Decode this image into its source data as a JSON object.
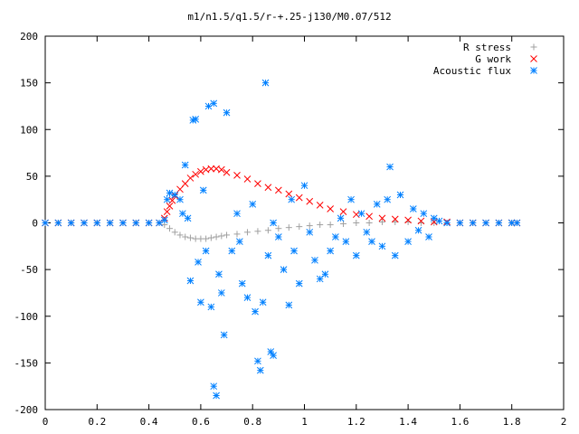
{
  "chart_data": {
    "type": "scatter",
    "title": "m1/n1.5/q1.5/r-+.25-j130/M0.07/512",
    "xlabel": "",
    "ylabel": "",
    "xlim": [
      0,
      2
    ],
    "ylim": [
      -200,
      200
    ],
    "x_ticks": [
      "0",
      "0.2",
      "0.4",
      "0.6",
      "0.8",
      "1",
      "1.2",
      "1.4",
      "1.6",
      "1.8",
      "2"
    ],
    "y_ticks": [
      "200",
      "150",
      "100",
      "50",
      "0",
      "-50",
      "-100",
      "-150",
      "-200"
    ],
    "grid": false,
    "legend_position": "top-right",
    "series": [
      {
        "name": "R stress",
        "marker": "plus",
        "color": "#a0a0a0",
        "points": [
          [
            0.0,
            0
          ],
          [
            0.05,
            0
          ],
          [
            0.1,
            0
          ],
          [
            0.15,
            0
          ],
          [
            0.2,
            0
          ],
          [
            0.25,
            0
          ],
          [
            0.3,
            0
          ],
          [
            0.35,
            0
          ],
          [
            0.4,
            0
          ],
          [
            0.44,
            0
          ],
          [
            0.46,
            -2
          ],
          [
            0.48,
            -6
          ],
          [
            0.5,
            -10
          ],
          [
            0.52,
            -13
          ],
          [
            0.54,
            -15
          ],
          [
            0.56,
            -16
          ],
          [
            0.58,
            -17
          ],
          [
            0.6,
            -17
          ],
          [
            0.62,
            -17
          ],
          [
            0.64,
            -16
          ],
          [
            0.66,
            -15
          ],
          [
            0.68,
            -14
          ],
          [
            0.7,
            -13
          ],
          [
            0.74,
            -12
          ],
          [
            0.78,
            -10
          ],
          [
            0.82,
            -9
          ],
          [
            0.86,
            -8
          ],
          [
            0.9,
            -6
          ],
          [
            0.94,
            -5
          ],
          [
            0.98,
            -4
          ],
          [
            1.02,
            -3
          ],
          [
            1.06,
            -2
          ],
          [
            1.1,
            -2
          ],
          [
            1.15,
            -1
          ],
          [
            1.2,
            0
          ],
          [
            1.25,
            0
          ],
          [
            1.3,
            1
          ],
          [
            1.35,
            1
          ],
          [
            1.4,
            1
          ],
          [
            1.45,
            0
          ],
          [
            1.5,
            0
          ],
          [
            1.55,
            0
          ],
          [
            1.6,
            0
          ],
          [
            1.65,
            0
          ],
          [
            1.7,
            0
          ],
          [
            1.75,
            0
          ],
          [
            1.8,
            0
          ],
          [
            1.82,
            0
          ]
        ]
      },
      {
        "name": "G work",
        "marker": "cross",
        "color": "#ff0000",
        "points": [
          [
            0.0,
            0
          ],
          [
            0.05,
            0
          ],
          [
            0.1,
            0
          ],
          [
            0.15,
            0
          ],
          [
            0.2,
            0
          ],
          [
            0.25,
            0
          ],
          [
            0.3,
            0
          ],
          [
            0.35,
            0
          ],
          [
            0.4,
            0
          ],
          [
            0.44,
            0
          ],
          [
            0.46,
            5
          ],
          [
            0.47,
            12
          ],
          [
            0.48,
            18
          ],
          [
            0.49,
            24
          ],
          [
            0.5,
            29
          ],
          [
            0.52,
            36
          ],
          [
            0.54,
            42
          ],
          [
            0.56,
            48
          ],
          [
            0.58,
            52
          ],
          [
            0.6,
            55
          ],
          [
            0.62,
            57
          ],
          [
            0.64,
            58
          ],
          [
            0.66,
            58
          ],
          [
            0.68,
            57
          ],
          [
            0.7,
            54
          ],
          [
            0.74,
            51
          ],
          [
            0.78,
            47
          ],
          [
            0.82,
            42
          ],
          [
            0.86,
            38
          ],
          [
            0.9,
            35
          ],
          [
            0.94,
            31
          ],
          [
            0.98,
            27
          ],
          [
            1.02,
            23
          ],
          [
            1.06,
            19
          ],
          [
            1.1,
            15
          ],
          [
            1.15,
            12
          ],
          [
            1.2,
            9
          ],
          [
            1.25,
            7
          ],
          [
            1.3,
            5
          ],
          [
            1.35,
            4
          ],
          [
            1.4,
            3
          ],
          [
            1.45,
            2
          ],
          [
            1.5,
            1
          ],
          [
            1.55,
            1
          ],
          [
            1.6,
            0
          ],
          [
            1.65,
            0
          ],
          [
            1.7,
            0
          ],
          [
            1.75,
            0
          ],
          [
            1.8,
            0
          ],
          [
            1.82,
            0
          ]
        ]
      },
      {
        "name": "Acoustic flux",
        "marker": "star",
        "color": "#0080ff",
        "points": [
          [
            0.0,
            0
          ],
          [
            0.05,
            0
          ],
          [
            0.1,
            0
          ],
          [
            0.15,
            0
          ],
          [
            0.2,
            0
          ],
          [
            0.25,
            0
          ],
          [
            0.3,
            0
          ],
          [
            0.35,
            0
          ],
          [
            0.4,
            0
          ],
          [
            0.44,
            0
          ],
          [
            0.46,
            3
          ],
          [
            0.47,
            25
          ],
          [
            0.48,
            32
          ],
          [
            0.5,
            30
          ],
          [
            0.52,
            25
          ],
          [
            0.53,
            10
          ],
          [
            0.54,
            62
          ],
          [
            0.55,
            5
          ],
          [
            0.56,
            -62
          ],
          [
            0.57,
            110
          ],
          [
            0.58,
            111
          ],
          [
            0.59,
            -42
          ],
          [
            0.6,
            -85
          ],
          [
            0.61,
            35
          ],
          [
            0.62,
            -30
          ],
          [
            0.63,
            125
          ],
          [
            0.64,
            -90
          ],
          [
            0.65,
            128
          ],
          [
            0.65,
            -175
          ],
          [
            0.66,
            -185
          ],
          [
            0.67,
            -55
          ],
          [
            0.68,
            -75
          ],
          [
            0.69,
            -120
          ],
          [
            0.7,
            118
          ],
          [
            0.72,
            -30
          ],
          [
            0.74,
            10
          ],
          [
            0.75,
            -20
          ],
          [
            0.76,
            -65
          ],
          [
            0.78,
            -80
          ],
          [
            0.8,
            20
          ],
          [
            0.81,
            -95
          ],
          [
            0.82,
            -148
          ],
          [
            0.83,
            -158
          ],
          [
            0.84,
            -85
          ],
          [
            0.85,
            150
          ],
          [
            0.86,
            -35
          ],
          [
            0.87,
            -138
          ],
          [
            0.88,
            -142
          ],
          [
            0.88,
            0
          ],
          [
            0.9,
            -15
          ],
          [
            0.92,
            -50
          ],
          [
            0.94,
            -88
          ],
          [
            0.95,
            25
          ],
          [
            0.96,
            -30
          ],
          [
            0.98,
            -65
          ],
          [
            1.0,
            40
          ],
          [
            1.02,
            -10
          ],
          [
            1.04,
            -40
          ],
          [
            1.06,
            -60
          ],
          [
            1.08,
            -55
          ],
          [
            1.1,
            -30
          ],
          [
            1.12,
            -15
          ],
          [
            1.14,
            5
          ],
          [
            1.16,
            -20
          ],
          [
            1.18,
            25
          ],
          [
            1.2,
            -35
          ],
          [
            1.22,
            10
          ],
          [
            1.24,
            -10
          ],
          [
            1.26,
            -20
          ],
          [
            1.28,
            20
          ],
          [
            1.3,
            -25
          ],
          [
            1.32,
            25
          ],
          [
            1.33,
            60
          ],
          [
            1.35,
            -35
          ],
          [
            1.37,
            30
          ],
          [
            1.4,
            -20
          ],
          [
            1.42,
            15
          ],
          [
            1.44,
            -8
          ],
          [
            1.46,
            10
          ],
          [
            1.48,
            -15
          ],
          [
            1.5,
            5
          ],
          [
            1.52,
            2
          ],
          [
            1.55,
            0
          ],
          [
            1.6,
            0
          ],
          [
            1.65,
            0
          ],
          [
            1.7,
            0
          ],
          [
            1.75,
            0
          ],
          [
            1.8,
            0
          ],
          [
            1.82,
            0
          ]
        ]
      }
    ]
  }
}
